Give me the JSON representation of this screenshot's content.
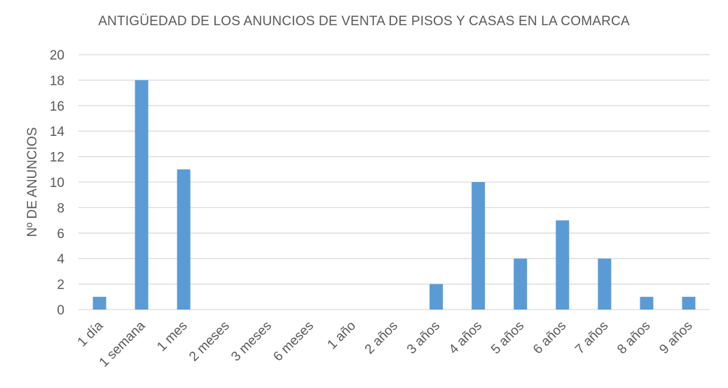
{
  "chart_data": {
    "type": "bar",
    "title": "ANTIGÜEDAD DE LOS ANUNCIOS DE VENTA DE PISOS Y CASAS EN LA COMARCA",
    "xlabel": "",
    "ylabel": "Nº DE ANUNCIOS",
    "categories": [
      "1 día",
      "1 semana",
      "1 mes",
      "2 meses",
      "3 meses",
      "6 meses",
      "1 año",
      "2 años",
      "3 años",
      "4 años",
      "5 años",
      "6 años",
      "7 años",
      "8 años",
      "9 años"
    ],
    "values": [
      1,
      18,
      11,
      0,
      0,
      0,
      0,
      0,
      2,
      10,
      4,
      7,
      4,
      1,
      1
    ],
    "ylim": [
      0,
      20
    ],
    "yticks": [
      0,
      2,
      4,
      6,
      8,
      10,
      12,
      14,
      16,
      18,
      20
    ],
    "grid": true,
    "legend": "none",
    "bar_color": "#5b9bd5",
    "grid_color": "#d9d9d9",
    "text_color": "#595959"
  }
}
